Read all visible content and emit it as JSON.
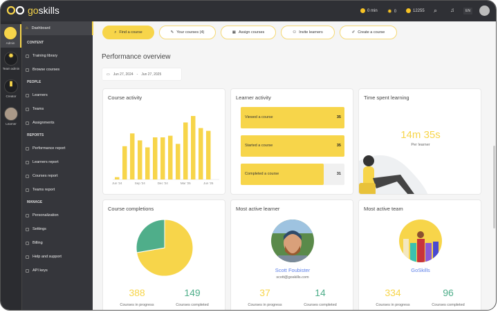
{
  "header": {
    "logo": "goskills",
    "time": "0 min",
    "streak": "0",
    "points": "12255",
    "language": "EN"
  },
  "rail": [
    {
      "label": "Admin"
    },
    {
      "label": "Team admin"
    },
    {
      "label": "Creator"
    },
    {
      "label": "Learner"
    }
  ],
  "sidebar": {
    "dashboard": "Dashboard",
    "sections": [
      {
        "title": "CONTENT",
        "items": [
          "Training library",
          "Browse courses"
        ]
      },
      {
        "title": "PEOPLE",
        "items": [
          "Learners",
          "Teams",
          "Assignments"
        ]
      },
      {
        "title": "REPORTS",
        "items": [
          "Performance report",
          "Learners report",
          "Courses report",
          "Teams report"
        ]
      },
      {
        "title": "MANAGE",
        "items": [
          "Personalization",
          "Settings",
          "Billing",
          "Help and support",
          "API keys"
        ]
      }
    ]
  },
  "actions": [
    "Find a course",
    "Your courses (4)",
    "Assign courses",
    "Invite learners",
    "Create a course"
  ],
  "page_title": "Performance overview",
  "date_range": {
    "start": "Jun 27, 2024",
    "sep": "-",
    "end": "Jun 27, 2025"
  },
  "course_activity": {
    "title": "Course activity",
    "chart_data": {
      "type": "bar",
      "categories": [
        "Jun '24",
        "Jul '24",
        "Aug '24",
        "Sep '24",
        "Oct '24",
        "Nov '24",
        "Dec '24",
        "Jan '25",
        "Feb '25",
        "Mar '25",
        "Apr '25",
        "May '25",
        "Jun '25"
      ],
      "tick_labels": [
        "Jun '24",
        "Sep '24",
        "Dec '24",
        "Mar '25",
        "Jun '25"
      ],
      "values": [
        10,
        143,
        198,
        168,
        138,
        181,
        181,
        188,
        153,
        245,
        273,
        221,
        209
      ],
      "color": "#f7d54a",
      "grid": false
    }
  },
  "learner_activity": {
    "title": "Learner activity",
    "max": 35,
    "items": [
      {
        "label": "Viewed a course",
        "value": 35
      },
      {
        "label": "Started a course",
        "value": 35
      },
      {
        "label": "Completed a course",
        "value": 31
      }
    ]
  },
  "time_spent": {
    "title": "Time spent learning",
    "value": "14m 35s",
    "sub": "Per learner"
  },
  "completions": {
    "title": "Course completions",
    "chart_data": {
      "type": "pie",
      "slices": [
        {
          "label": "Courses in progress",
          "value": 388,
          "color": "#f7d54a"
        },
        {
          "label": "Courses completed",
          "value": 149,
          "color": "#4fae8a"
        }
      ]
    },
    "in_progress": "388",
    "in_progress_label": "Courses in progress",
    "completed": "149",
    "completed_label": "Courses completed"
  },
  "active_learner": {
    "title": "Most active learner",
    "name": "Scott Foubister",
    "email": "scott@goskills.com",
    "in_progress": "37",
    "in_progress_label": "Courses in progress",
    "completed": "14",
    "completed_label": "Courses completed"
  },
  "active_team": {
    "title": "Most active team",
    "name": "GoSkills",
    "in_progress": "334",
    "in_progress_label": "Courses in progress",
    "completed": "96",
    "completed_label": "Courses completed"
  }
}
